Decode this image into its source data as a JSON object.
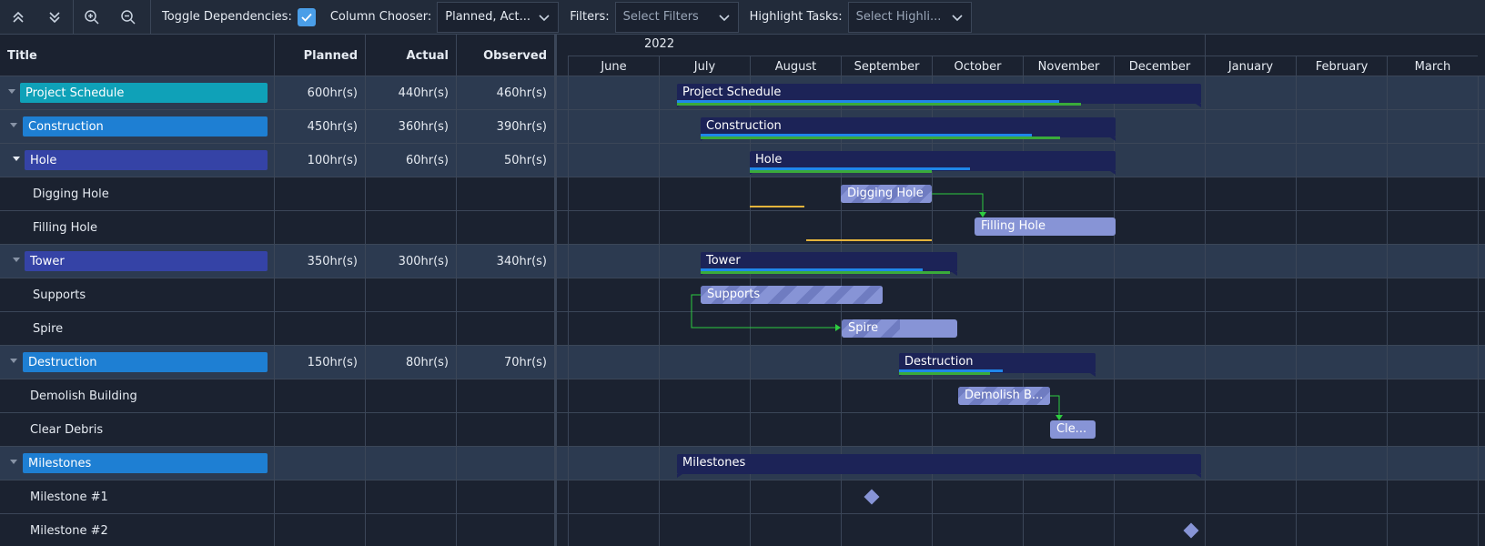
{
  "toolbar": {
    "icons": [
      "collapse-all-icon",
      "expand-all-icon",
      "zoom-in-icon",
      "zoom-out-icon"
    ],
    "toggle_dependencies_label": "Toggle Dependencies:",
    "toggle_dependencies_checked": true,
    "column_chooser_label": "Column Chooser:",
    "column_chooser_value": "Planned, Act...",
    "filters_label": "Filters:",
    "filters_placeholder": "Select Filters",
    "highlight_label": "Highlight Tasks:",
    "highlight_placeholder": "Select Highli..."
  },
  "columns": {
    "title": "Title",
    "planned": "Planned",
    "actual": "Actual",
    "observed": "Observed"
  },
  "timeline": {
    "year": "2022",
    "months": [
      "June",
      "July",
      "August",
      "September",
      "October",
      "November",
      "December",
      "January",
      "February",
      "March"
    ]
  },
  "rows": [
    {
      "title": "Project Schedule",
      "planned": "600hr(s)",
      "actual": "440hr(s)",
      "observed": "460hr(s)"
    },
    {
      "title": "Construction",
      "planned": "450hr(s)",
      "actual": "360hr(s)",
      "observed": "390hr(s)"
    },
    {
      "title": "Hole",
      "planned": "100hr(s)",
      "actual": "60hr(s)",
      "observed": "50hr(s)"
    },
    {
      "title": "Digging Hole"
    },
    {
      "title": "Filling Hole"
    },
    {
      "title": "Tower",
      "planned": "350hr(s)",
      "actual": "300hr(s)",
      "observed": "340hr(s)"
    },
    {
      "title": "Supports"
    },
    {
      "title": "Spire"
    },
    {
      "title": "Destruction",
      "planned": "150hr(s)",
      "actual": "80hr(s)",
      "observed": "70hr(s)"
    },
    {
      "title": "Demolish Building"
    },
    {
      "title": "Clear Debris"
    },
    {
      "title": "Milestones"
    },
    {
      "title": "Milestone #1"
    },
    {
      "title": "Milestone #2"
    }
  ],
  "bars": {
    "project_schedule": "Project Schedule",
    "construction": "Construction",
    "hole": "Hole",
    "digging_hole": "Digging Hole",
    "filling_hole": "Filling Hole",
    "tower": "Tower",
    "supports": "Supports",
    "spire": "Spire",
    "destruction": "Destruction",
    "demolish": "Demolish B...",
    "clear": "Cle...",
    "milestones": "Milestones"
  },
  "colors": {
    "accent_check": "#4a9ee8",
    "summary_bar": "#1c2357",
    "task_bar": "#8794d6",
    "progress_blue": "#1f87ea",
    "progress_green": "#3aab3a",
    "dependency": "#2ecc40",
    "baseline": "#e4b43c",
    "pill_teal": "#0fa1b8",
    "pill_blue": "#1e7fd3",
    "pill_indigo": "#3543a6"
  }
}
